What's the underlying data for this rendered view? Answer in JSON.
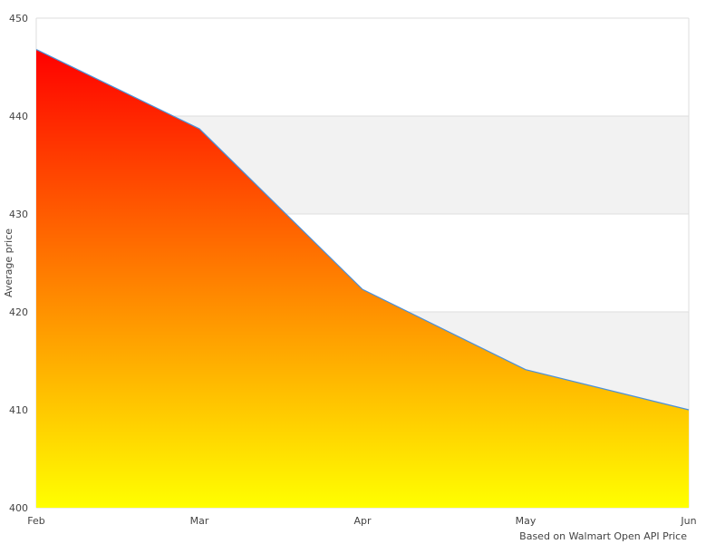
{
  "chart_data": {
    "type": "area",
    "title": "",
    "xlabel": "Based on Walmart Open API Price",
    "ylabel": "Average price",
    "categories": [
      "Feb",
      "Mar",
      "Apr",
      "May",
      "Jun"
    ],
    "series": [
      {
        "values": [
          446.8,
          438.7,
          422.3,
          414.1,
          410.0
        ]
      }
    ],
    "ylim": [
      400,
      450
    ],
    "yticks": [
      400,
      410,
      420,
      430,
      440,
      450
    ],
    "grid": true,
    "legend": "none",
    "colors": {
      "fill_top": "#ff0000",
      "fill_bottom": "#ffff00",
      "line": "#4a90d9",
      "band": "#f2f2f2",
      "grid": "#dddddd"
    }
  }
}
